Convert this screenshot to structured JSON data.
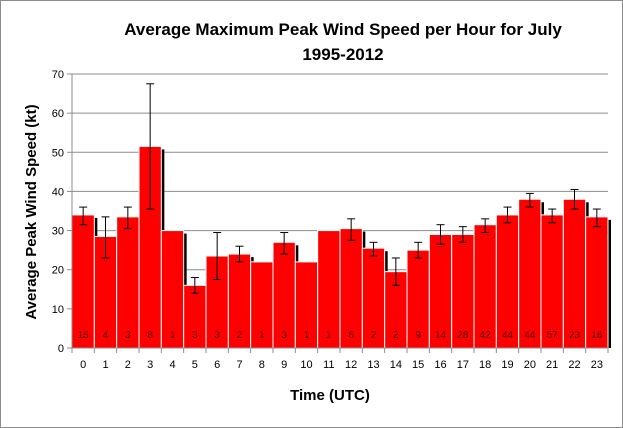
{
  "chart_data": {
    "type": "bar",
    "title_line1": "Average Maximum  Peak Wind Speed per Hour for July",
    "title_line2": "1995-2012",
    "xlabel": "Time (UTC)",
    "ylabel": "Average Peak Wind Speed (kt)",
    "ylim": [
      0,
      70
    ],
    "yticks": [
      0,
      10,
      20,
      30,
      40,
      50,
      60,
      70
    ],
    "grid": true,
    "legend": "none",
    "bar_color": "#ff0000",
    "categories": [
      "0",
      "1",
      "2",
      "3",
      "4",
      "5",
      "6",
      "7",
      "8",
      "9",
      "10",
      "11",
      "12",
      "13",
      "14",
      "15",
      "16",
      "17",
      "18",
      "19",
      "20",
      "21",
      "22",
      "23"
    ],
    "values": [
      34,
      28.5,
      33.5,
      51.5,
      30,
      16,
      23.5,
      24,
      22,
      27,
      22,
      30,
      30.5,
      25.5,
      19.5,
      25,
      29,
      29,
      31.5,
      34,
      38,
      34,
      38,
      33.5
    ],
    "error_low": [
      31.5,
      23,
      30.5,
      35.5,
      30,
      14,
      17.5,
      22,
      22,
      24,
      22,
      30,
      27.5,
      23.5,
      16,
      23,
      26.5,
      27,
      29.5,
      32,
      36,
      32,
      35.5,
      31
    ],
    "error_high": [
      36,
      33.5,
      36,
      67.5,
      30,
      18,
      29.5,
      26,
      22,
      29.5,
      22,
      30,
      33,
      27,
      23,
      27,
      31.5,
      31,
      33,
      36,
      39.5,
      35.5,
      40.5,
      35.5
    ],
    "counts": [
      "15",
      "4",
      "3",
      "8",
      "1",
      "3",
      "3",
      "2",
      "1",
      "3",
      "1",
      "1",
      "6",
      "2",
      "2",
      "9",
      "14",
      "28",
      "42",
      "44",
      "44",
      "57",
      "23",
      "16"
    ]
  }
}
